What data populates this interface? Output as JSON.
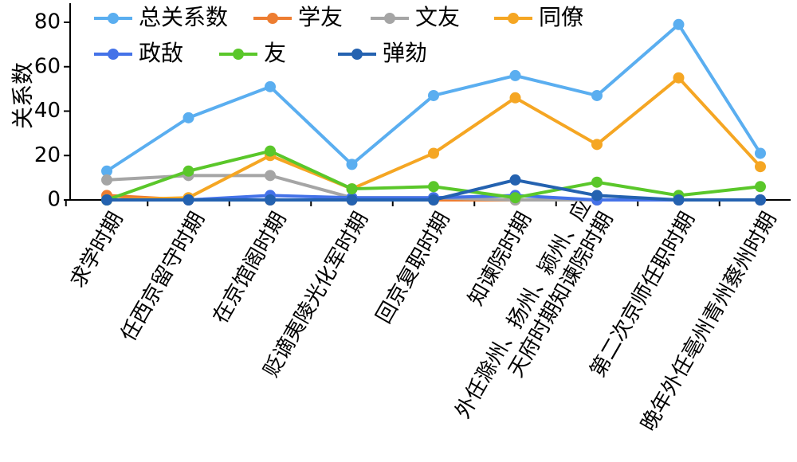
{
  "chart_data": {
    "type": "line",
    "ylabel": "关系数",
    "ylim": [
      0,
      80
    ],
    "yticks": [
      0,
      20,
      40,
      60,
      80
    ],
    "grid": false,
    "legend_position": "top",
    "categories": [
      "求学时期",
      "任西京留守时期",
      "在京馆阁时期",
      "贬谪夷陵光化军时期",
      "回京复职时期",
      "知谏院时期",
      "外任滁州、扬州、颍州、应天府时期知谏院时期",
      "第二次京师任职时期",
      "晚年外任亳州青州蔡州时期"
    ],
    "category_lines": [
      [
        "求学时期"
      ],
      [
        "任西京留守时期"
      ],
      [
        "在京馆阁时期"
      ],
      [
        "贬谪夷陵光化军时期"
      ],
      [
        "回京复职时期"
      ],
      [
        "知谏院时期"
      ],
      [
        "外任滁州、扬州、颍州、应",
        "天府时期知谏院时期"
      ],
      [
        "第二次京师任职时期"
      ],
      [
        "晚年外任亳州青州蔡州时期"
      ]
    ],
    "series": [
      {
        "name": "总关系数",
        "color": "#5aaef0",
        "values": [
          13,
          37,
          51,
          16,
          47,
          56,
          47,
          79,
          21
        ]
      },
      {
        "name": "学友",
        "color": "#ed7d31",
        "values": [
          2,
          0,
          0,
          0,
          0,
          0,
          0,
          0,
          0
        ]
      },
      {
        "name": "文友",
        "color": "#a5a5a5",
        "values": [
          9,
          11,
          11,
          1,
          1,
          0,
          0,
          0,
          0
        ]
      },
      {
        "name": "同僚",
        "color": "#f5a623",
        "values": [
          0,
          1,
          20,
          5,
          21,
          46,
          25,
          55,
          15
        ]
      },
      {
        "name": "政敌",
        "color": "#4472e8",
        "values": [
          0,
          0,
          2,
          1,
          1,
          2,
          0,
          0,
          0
        ]
      },
      {
        "name": "友",
        "color": "#5ac72a",
        "values": [
          0,
          13,
          22,
          5,
          6,
          1,
          8,
          2,
          6
        ]
      },
      {
        "name": "弹劾",
        "color": "#2462b0",
        "values": [
          0,
          0,
          0,
          0,
          0,
          9,
          2,
          0,
          0
        ]
      }
    ]
  }
}
